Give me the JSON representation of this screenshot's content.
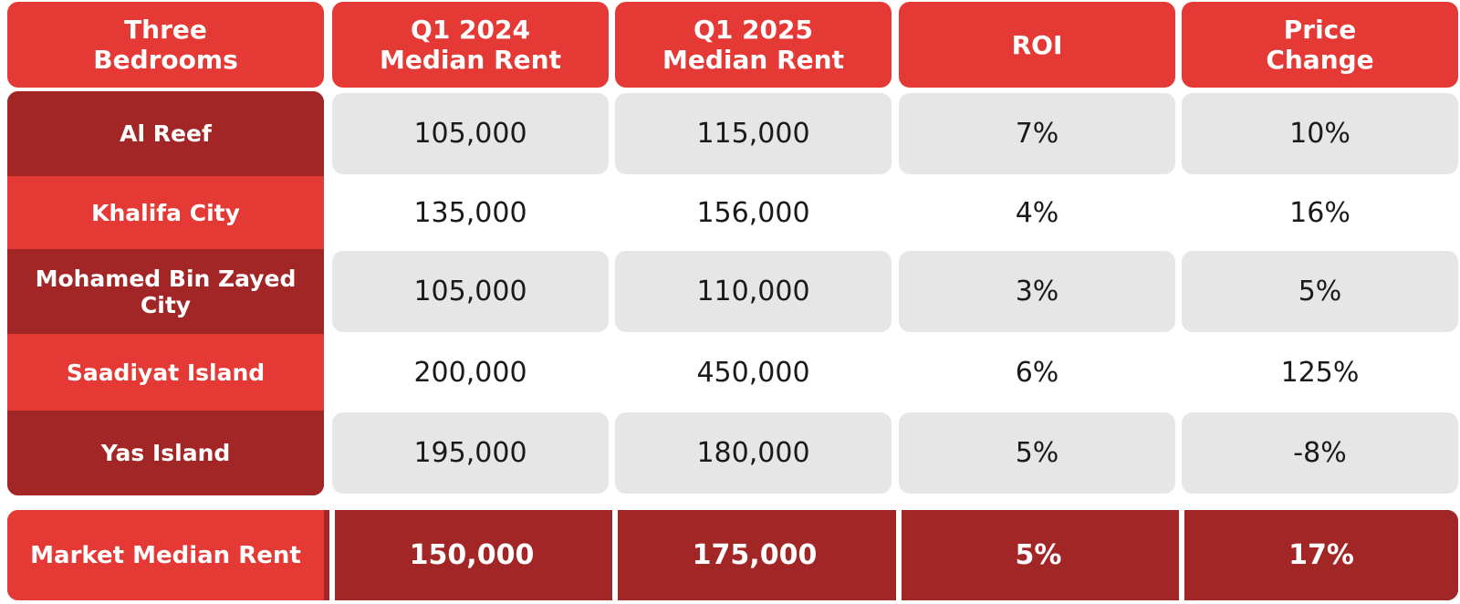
{
  "table": {
    "header": [
      "Three Bedrooms",
      "Q1 2024 Median Rent",
      "Q1 2025 Median Rent",
      "ROI",
      "Price Change"
    ],
    "rows": [
      [
        "Al Reef",
        "105,000",
        "115,000",
        "7%",
        "10%"
      ],
      [
        "Khalifa City",
        "135,000",
        "156,000",
        "4%",
        "16%"
      ],
      [
        "Mohamed Bin Zayed City",
        "105,000",
        "110,000",
        "3%",
        "5%"
      ],
      [
        "Saadiyat Island",
        "200,000",
        "450,000",
        "6%",
        "125%"
      ],
      [
        "Yas Island",
        "195,000",
        "180,000",
        "5%",
        "-8%"
      ]
    ],
    "total": [
      "Market Median Rent",
      "150,000",
      "175,000",
      "5%",
      "17%"
    ]
  }
}
